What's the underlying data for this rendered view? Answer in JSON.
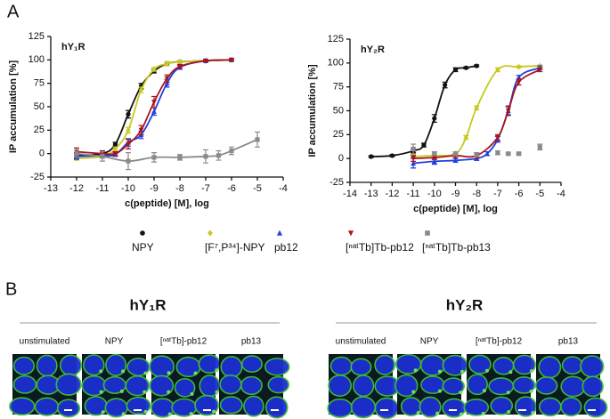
{
  "panel_a_label": "A",
  "chart_data": [
    {
      "type": "scatter",
      "title": "hY₁R",
      "xlabel": "c(peptide) [M], log",
      "ylabel": "IP accumulation [%]",
      "xlim": [
        -13,
        -4
      ],
      "xticks": [
        -13,
        -12,
        -11,
        -10,
        -9,
        -8,
        -7,
        -6,
        -5,
        -4
      ],
      "ylim": [
        -25,
        125
      ],
      "yticks": [
        -25,
        0,
        25,
        50,
        75,
        100,
        125
      ],
      "series": [
        {
          "x": [
            -12,
            -11,
            -10.5,
            -10,
            -9.5,
            -9,
            -8.5,
            -8,
            -7,
            -6
          ],
          "values": [
            -2,
            0,
            10,
            42,
            72,
            88,
            96,
            98,
            99,
            100
          ],
          "errors": [
            3,
            2,
            2,
            4,
            3,
            2,
            2,
            1,
            1,
            1
          ],
          "line": true
        },
        {
          "x": [
            -12,
            -11,
            -10.5,
            -10,
            -9.5,
            -9,
            -8.5,
            -8,
            -7,
            -6
          ],
          "values": [
            -5,
            -3,
            5,
            25,
            68,
            90,
            96,
            98,
            99,
            100
          ],
          "errors": [
            2,
            2,
            2,
            3,
            3,
            2,
            2,
            1,
            1,
            1
          ],
          "line": true
        },
        {
          "x": [
            -12,
            -11,
            -10.5,
            -10,
            -9.5,
            -9,
            -8.5,
            -8,
            -7,
            -6
          ],
          "values": [
            -3,
            -2,
            -1,
            12,
            20,
            45,
            75,
            92,
            99,
            100
          ],
          "errors": [
            3,
            2,
            2,
            4,
            4,
            4,
            4,
            2,
            1,
            1
          ],
          "line": true
        },
        {
          "x": [
            -12,
            -11,
            -10.5,
            -10,
            -9.5,
            -9,
            -8.5,
            -8,
            -7,
            -6
          ],
          "values": [
            2,
            0,
            0,
            10,
            25,
            55,
            80,
            93,
            99,
            100
          ],
          "errors": [
            4,
            3,
            2,
            5,
            5,
            6,
            4,
            2,
            1,
            1
          ],
          "line": true
        },
        {
          "x": [
            -12,
            -11,
            -10,
            -9,
            -8,
            -7,
            -6.5,
            -6,
            -5
          ],
          "values": [
            0,
            -3,
            -8,
            -4,
            -4,
            -3,
            -2,
            3,
            15
          ],
          "errors": [
            4,
            5,
            9,
            5,
            3,
            7,
            5,
            4,
            8
          ],
          "line": true
        }
      ]
    },
    {
      "type": "scatter",
      "title": "hY₂R",
      "xlabel": "c(peptide) [M], log",
      "ylabel": "IP accumulation [%]",
      "xlim": [
        -14,
        -4
      ],
      "xticks": [
        -14,
        -13,
        -12,
        -11,
        -10,
        -9,
        -8,
        -7,
        -6,
        -5,
        -4
      ],
      "ylim": [
        -25,
        125
      ],
      "yticks": [
        -25,
        0,
        25,
        50,
        75,
        100,
        125
      ],
      "series": [
        {
          "x": [
            -13,
            -12,
            -11,
            -10.5,
            -10,
            -9.5,
            -9,
            -8.5,
            -8
          ],
          "values": [
            2,
            3,
            8,
            14,
            42,
            77,
            93,
            95,
            97
          ],
          "errors": [
            1,
            1,
            2,
            2,
            4,
            3,
            2,
            1,
            1
          ],
          "line": true
        },
        {
          "x": [
            -11,
            -10,
            -9,
            -8.5,
            -8,
            -7,
            -6,
            -5
          ],
          "values": [
            2,
            3,
            5,
            22,
            53,
            93,
            96,
            97
          ],
          "errors": [
            2,
            2,
            2,
            2,
            2,
            2,
            1,
            1
          ],
          "line": true
        },
        {
          "x": [
            -11,
            -10,
            -9,
            -8,
            -7.5,
            -7,
            -6.5,
            -6,
            -5
          ],
          "values": [
            -5,
            -3,
            -2,
            0,
            5,
            20,
            50,
            85,
            95
          ],
          "errors": [
            5,
            3,
            2,
            2,
            2,
            3,
            4,
            2,
            2
          ],
          "line": true
        },
        {
          "x": [
            -11,
            -10,
            -9,
            -8,
            -7,
            -6.5,
            -6,
            -5
          ],
          "values": [
            0,
            1,
            3,
            3,
            22,
            50,
            80,
            93
          ],
          "errors": [
            3,
            2,
            2,
            3,
            3,
            5,
            3,
            2
          ],
          "line": true
        },
        {
          "x": [
            -11,
            -10,
            -9,
            -8,
            -7,
            -6.5,
            -6,
            -5
          ],
          "values": [
            10,
            5,
            5,
            4,
            6,
            5,
            5,
            12
          ],
          "errors": [
            5,
            2,
            2,
            2,
            2,
            1,
            1,
            3
          ],
          "line": false
        }
      ]
    }
  ],
  "legend": [
    {
      "name": "NPY",
      "color": "#111111",
      "marker": "circle"
    },
    {
      "name": "[F⁷,P³⁴]-NPY",
      "color": "#c8c81e",
      "marker": "diamond"
    },
    {
      "name": "pb12",
      "color": "#1f3fe0",
      "marker": "triangle-up"
    },
    {
      "name": "[ⁿᵃᵗTb]Tb-pb12",
      "color": "#a8141e",
      "marker": "triangle-down"
    },
    {
      "name": "[ⁿᵃᵗTb]Tb-pb13",
      "color": "#8a8a8a",
      "marker": "square"
    }
  ],
  "panel_b": {
    "label": "B",
    "groups": [
      {
        "title": "hY₁R",
        "images": [
          "unstimulated",
          "NPY",
          "[ⁿᵃᵗTb]-pb12",
          "pb13"
        ]
      },
      {
        "title": "hY₂R",
        "images": [
          "unstimulated",
          "NPY",
          "[ⁿᵃᵗTb]-pb12",
          "pb13"
        ]
      }
    ]
  }
}
